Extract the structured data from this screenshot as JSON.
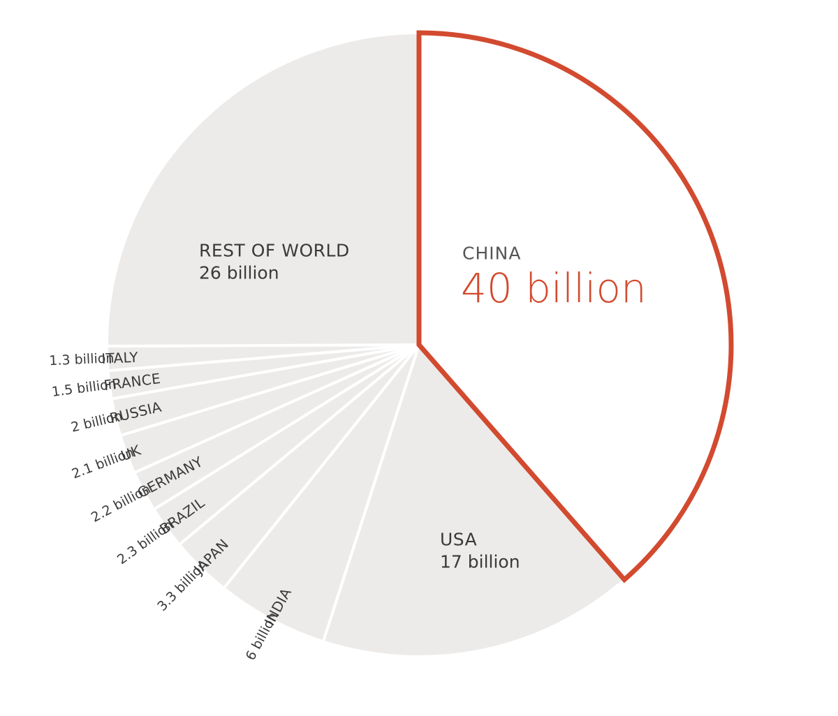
{
  "chart_data": {
    "type": "pie",
    "highlight_color": "#d24a2f",
    "slice_color": "#edebe9",
    "slices": [
      {
        "label": "CHINA",
        "value": 40,
        "value_label": "40 billion",
        "highlight": true
      },
      {
        "label": "USA",
        "value": 17,
        "value_label": "17 billion"
      },
      {
        "label": "INDIA",
        "value": 6,
        "value_label": "6 billion"
      },
      {
        "label": "JAPAN",
        "value": 3.3,
        "value_label": "3.3 billion"
      },
      {
        "label": "BRAZIL",
        "value": 2.3,
        "value_label": "2.3 billion"
      },
      {
        "label": "GERMANY",
        "value": 2.2,
        "value_label": "2.2 billion"
      },
      {
        "label": "UK",
        "value": 2.1,
        "value_label": "2.1 billion"
      },
      {
        "label": "RUSSIA",
        "value": 2,
        "value_label": "2 billion"
      },
      {
        "label": "FRANCE",
        "value": 1.5,
        "value_label": "1.5 billion"
      },
      {
        "label": "ITALY",
        "value": 1.3,
        "value_label": "1.3 billion"
      },
      {
        "label": "REST OF WORLD",
        "value": 26,
        "value_label": "26 billion"
      }
    ]
  }
}
